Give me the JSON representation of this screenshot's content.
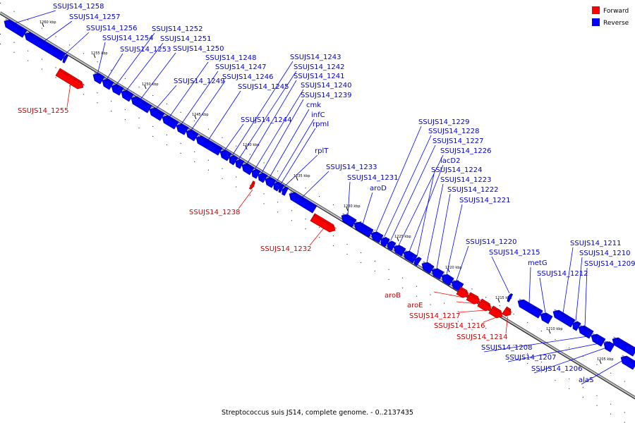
{
  "caption": "Streptococcus suis JS14, complete genome. - 0..2137435",
  "colors": {
    "forward": "#ff0000",
    "reverse": "#0000ff",
    "leader": "#0000ff"
  },
  "legend": [
    {
      "label": "Forward",
      "color": "#ff0000"
    },
    {
      "label": "Reverse",
      "color": "#0000ff"
    }
  ],
  "scale": [
    {
      "label": "1260 kbp",
      "tick": [
        60,
        36
      ]
    },
    {
      "label": "1255 kbp",
      "tick": [
        133,
        80
      ]
    },
    {
      "label": "1250 kbp",
      "tick": [
        205,
        124
      ]
    },
    {
      "label": "1245 kbp",
      "tick": [
        276,
        167
      ]
    },
    {
      "label": "1240 kbp",
      "tick": [
        348,
        210
      ]
    },
    {
      "label": "1235 kbp",
      "tick": [
        420,
        254
      ]
    },
    {
      "label": "1230 kbp",
      "tick": [
        491,
        297
      ]
    },
    {
      "label": "1225 kbp",
      "tick": [
        563,
        340
      ]
    },
    {
      "label": "1220 kbp",
      "tick": [
        635,
        384
      ]
    },
    {
      "label": "1215 kbp",
      "tick": [
        706,
        427
      ]
    },
    {
      "label": "1210 kbp",
      "tick": [
        778,
        471
      ]
    },
    {
      "label": "1205 kbp",
      "tick": [
        850,
        514
      ]
    }
  ],
  "genes": [
    {
      "name": "SSUJS14_1258",
      "strand": "reverse",
      "gene": [
        6,
        30
      ],
      "end": [
        35,
        48
      ],
      "label": [
        75,
        12
      ],
      "anchor": "start"
    },
    {
      "name": "SSUJS14_1257",
      "strand": "reverse",
      "gene": [
        35,
        48
      ],
      "end": [
        90,
        81
      ],
      "label": [
        98,
        27
      ],
      "anchor": "start"
    },
    {
      "name": "SSUJS14_1256",
      "strand": "reverse",
      "gene": [
        90,
        82
      ],
      "end": [
        94,
        84
      ],
      "label": [
        122,
        43
      ],
      "anchor": "start"
    },
    {
      "name": "SSUJS14_1255",
      "strand": "forward",
      "gene": [
        82,
        102
      ],
      "end": [
        118,
        124
      ],
      "label": [
        25,
        160
      ],
      "anchor": "start"
    },
    {
      "name": "SSUJS14_1254",
      "strand": "reverse",
      "gene": [
        132,
        106
      ],
      "end": [
        145,
        114
      ],
      "label": [
        145,
        57
      ],
      "anchor": "start"
    },
    {
      "name": "SSUJS14_1253",
      "strand": "reverse",
      "gene": [
        145,
        114
      ],
      "end": [
        158,
        122
      ],
      "label": [
        170,
        73
      ],
      "anchor": "start"
    },
    {
      "name": "SSUJS14_1252",
      "strand": "reverse",
      "gene": [
        158,
        122
      ],
      "end": [
        172,
        130
      ],
      "label": [
        215,
        44
      ],
      "anchor": "start"
    },
    {
      "name": "SSUJS14_1251",
      "strand": "reverse",
      "gene": [
        172,
        130
      ],
      "end": [
        186,
        139
      ],
      "label": [
        227,
        58
      ],
      "anchor": "start"
    },
    {
      "name": "SSUJS14_1250",
      "strand": "reverse",
      "gene": [
        186,
        139
      ],
      "end": [
        212,
        155
      ],
      "label": [
        245,
        72
      ],
      "anchor": "start"
    },
    {
      "name": "SSUJS14_1249",
      "strand": "reverse",
      "gene": [
        212,
        155
      ],
      "end": [
        230,
        166
      ],
      "label": [
        246,
        118
      ],
      "anchor": "start"
    },
    {
      "name": "SSUJS14_1248",
      "strand": "reverse",
      "gene": [
        230,
        166
      ],
      "end": [
        250,
        178
      ],
      "label": [
        291,
        85
      ],
      "anchor": "start"
    },
    {
      "name": "SSUJS14_1247",
      "strand": "reverse",
      "gene": [
        250,
        178
      ],
      "end": [
        264,
        186
      ],
      "label": [
        305,
        98
      ],
      "anchor": "start"
    },
    {
      "name": "SSUJS14_1246",
      "strand": "reverse",
      "gene": [
        264,
        186
      ],
      "end": [
        278,
        195
      ],
      "label": [
        315,
        112
      ],
      "anchor": "start"
    },
    {
      "name": "SSUJS14_1245",
      "strand": "reverse",
      "gene": [
        278,
        195
      ],
      "end": [
        312,
        215
      ],
      "label": [
        337,
        126
      ],
      "anchor": "start"
    },
    {
      "name": "SSUJS14_1244",
      "strand": "reverse",
      "gene": [
        312,
        215
      ],
      "end": [
        325,
        223
      ],
      "label": [
        341,
        173
      ],
      "anchor": "start"
    },
    {
      "name": "SSUJS14_1243",
      "strand": "reverse",
      "gene": [
        325,
        223
      ],
      "end": [
        334,
        229
      ],
      "label": [
        411,
        84
      ],
      "anchor": "start"
    },
    {
      "name": "SSUJS14_1242",
      "strand": "reverse",
      "gene": [
        334,
        229
      ],
      "end": [
        343,
        234
      ],
      "label": [
        416,
        98
      ],
      "anchor": "start"
    },
    {
      "name": "SSUJS14_1241",
      "strand": "reverse",
      "gene": [
        343,
        234
      ],
      "end": [
        357,
        243
      ],
      "label": [
        416,
        111
      ],
      "anchor": "start"
    },
    {
      "name": "SSUJS14_1240",
      "strand": "reverse",
      "gene": [
        357,
        243
      ],
      "end": [
        366,
        248
      ],
      "label": [
        426,
        124
      ],
      "anchor": "start"
    },
    {
      "name": "SSUJS14_1239",
      "strand": "reverse",
      "gene": [
        366,
        248
      ],
      "end": [
        376,
        254
      ],
      "label": [
        426,
        138
      ],
      "anchor": "start"
    },
    {
      "name": "cmk",
      "strand": "reverse",
      "gene": [
        376,
        254
      ],
      "end": [
        388,
        261
      ],
      "label": [
        434,
        152
      ],
      "anchor": "start"
    },
    {
      "name": "infC",
      "strand": "reverse",
      "gene": [
        388,
        261
      ],
      "end": [
        396,
        266
      ],
      "label": [
        441,
        166
      ],
      "anchor": "start"
    },
    {
      "name": "rpmI",
      "strand": "reverse",
      "gene": [
        396,
        266
      ],
      "end": [
        400,
        268
      ],
      "label": [
        443,
        179
      ],
      "anchor": "start"
    },
    {
      "name": "SSUJS14_1238",
      "strand": "forward",
      "gene": [
        356,
        262
      ],
      "end": [
        360,
        264
      ],
      "label": [
        268,
        304
      ],
      "anchor": "start"
    },
    {
      "name": "rplT",
      "strand": "reverse",
      "gene": [
        400,
        269
      ],
      "end": [
        406,
        272
      ],
      "label": [
        446,
        217
      ],
      "anchor": "start"
    },
    {
      "name": "SSUJS14_1233",
      "strand": "reverse",
      "gene": [
        410,
        275
      ],
      "end": [
        446,
        297
      ],
      "label": [
        462,
        240
      ],
      "anchor": "start"
    },
    {
      "name": "SSUJS14_1232",
      "strand": "forward",
      "gene": [
        443,
        308
      ],
      "end": [
        475,
        327
      ],
      "label": [
        369,
        356
      ],
      "anchor": "start"
    },
    {
      "name": "SSUJS14_1231",
      "strand": "reverse",
      "gene": [
        484,
        306
      ],
      "end": [
        502,
        317
      ],
      "label": [
        492,
        255
      ],
      "anchor": "start"
    },
    {
      "name": "aroD",
      "strand": "reverse",
      "gene": [
        502,
        317
      ],
      "end": [
        526,
        331
      ],
      "label": [
        524,
        270
      ],
      "anchor": "start"
    },
    {
      "name": "SSUJS14_1229",
      "strand": "reverse",
      "gene": [
        526,
        331
      ],
      "end": [
        540,
        339
      ],
      "label": [
        593,
        176
      ],
      "anchor": "start"
    },
    {
      "name": "SSUJS14_1228",
      "strand": "reverse",
      "gene": [
        540,
        339
      ],
      "end": [
        549,
        345
      ],
      "label": [
        607,
        189
      ],
      "anchor": "start"
    },
    {
      "name": "SSUJS14_1227",
      "strand": "reverse",
      "gene": [
        549,
        345
      ],
      "end": [
        558,
        350
      ],
      "label": [
        613,
        203
      ],
      "anchor": "start"
    },
    {
      "name": "SSUJS14_1226",
      "strand": "reverse",
      "gene": [
        558,
        350
      ],
      "end": [
        572,
        358
      ],
      "label": [
        624,
        217
      ],
      "anchor": "start"
    },
    {
      "name": "lacD2",
      "strand": "reverse",
      "gene": [
        572,
        358
      ],
      "end": [
        588,
        368
      ],
      "label": [
        624,
        231
      ],
      "anchor": "start"
    },
    {
      "name": "SSUJS14_1224",
      "strand": "reverse",
      "gene": [
        588,
        368
      ],
      "end": [
        594,
        372
      ],
      "label": [
        611,
        244
      ],
      "anchor": "start"
    },
    {
      "name": "SSUJS14_1223",
      "strand": "reverse",
      "gene": [
        598,
        374
      ],
      "end": [
        612,
        383
      ],
      "label": [
        624,
        258
      ],
      "anchor": "start"
    },
    {
      "name": "SSUJS14_1222",
      "strand": "reverse",
      "gene": [
        612,
        383
      ],
      "end": [
        626,
        391
      ],
      "label": [
        634,
        272
      ],
      "anchor": "start"
    },
    {
      "name": "SSUJS14_1221",
      "strand": "reverse",
      "gene": [
        626,
        391
      ],
      "end": [
        640,
        400
      ],
      "label": [
        651,
        287
      ],
      "anchor": "start"
    },
    {
      "name": "SSUJS14_1220",
      "strand": "reverse",
      "gene": [
        640,
        400
      ],
      "end": [
        654,
        408
      ],
      "label": [
        660,
        346
      ],
      "anchor": "start"
    },
    {
      "name": "aroB",
      "strand": "forward",
      "gene": [
        650,
        412
      ],
      "end": [
        664,
        420
      ],
      "label": [
        545,
        422
      ],
      "anchor": "start"
    },
    {
      "name": "aroE",
      "strand": "forward",
      "gene": [
        664,
        420
      ],
      "end": [
        680,
        429
      ],
      "label": [
        577,
        436
      ],
      "anchor": "start"
    },
    {
      "name": "SSUJS14_1217",
      "strand": "forward",
      "gene": [
        680,
        429
      ],
      "end": [
        696,
        439
      ],
      "label": [
        580,
        451
      ],
      "anchor": "start"
    },
    {
      "name": "SSUJS14_1216",
      "strand": "forward",
      "gene": [
        696,
        439
      ],
      "end": [
        712,
        449
      ],
      "label": [
        615,
        465
      ],
      "anchor": "start"
    },
    {
      "name": "SSUJS14_1215",
      "strand": "reverse",
      "gene": [
        720,
        421
      ],
      "end": [
        724,
        423
      ],
      "label": [
        693,
        361
      ],
      "anchor": "start"
    },
    {
      "name": "SSUJS14_1214",
      "strand": "forward",
      "gene": [
        715,
        440
      ],
      "end": [
        724,
        446
      ],
      "label": [
        647,
        481
      ],
      "anchor": "start"
    },
    {
      "name": "metG",
      "strand": "reverse",
      "gene": [
        734,
        427
      ],
      "end": [
        766,
        446
      ],
      "label": [
        748,
        376
      ],
      "anchor": "start"
    },
    {
      "name": "SSUJS14_1212",
      "strand": "reverse",
      "gene": [
        766,
        446
      ],
      "end": [
        780,
        454
      ],
      "label": [
        761,
        391
      ],
      "anchor": "start"
    },
    {
      "name": "SSUJS14_1211",
      "strand": "reverse",
      "gene": [
        784,
        442
      ],
      "end": [
        812,
        459
      ],
      "label": [
        808,
        348
      ],
      "anchor": "start"
    },
    {
      "name": "SSUJS14_1210",
      "strand": "reverse",
      "gene": [
        812,
        459
      ],
      "end": [
        820,
        464
      ],
      "label": [
        821,
        362
      ],
      "anchor": "start"
    },
    {
      "name": "SSUJS14_1209",
      "strand": "reverse",
      "gene": [
        820,
        464
      ],
      "end": [
        838,
        475
      ],
      "label": [
        828,
        377
      ],
      "anchor": "start"
    },
    {
      "name": "SSUJS14_1208",
      "strand": "reverse",
      "gene": [
        838,
        476
      ],
      "end": [
        855,
        486
      ],
      "label": [
        682,
        496
      ],
      "anchor": "start"
    },
    {
      "name": "SSUJS14_1207",
      "strand": "reverse",
      "gene": [
        856,
        487
      ],
      "end": [
        868,
        494
      ],
      "label": [
        716,
        510
      ],
      "anchor": "start"
    },
    {
      "name": "SSUJS14_1206",
      "strand": "reverse",
      "gene": [
        868,
        481
      ],
      "end": [
        900,
        500
      ],
      "label": [
        753,
        526
      ],
      "anchor": "start"
    },
    {
      "name": "alaS",
      "strand": "reverse",
      "gene": [
        880,
        507
      ],
      "end": [
        900,
        519
      ],
      "label": [
        820,
        542
      ],
      "anchor": "start"
    }
  ]
}
